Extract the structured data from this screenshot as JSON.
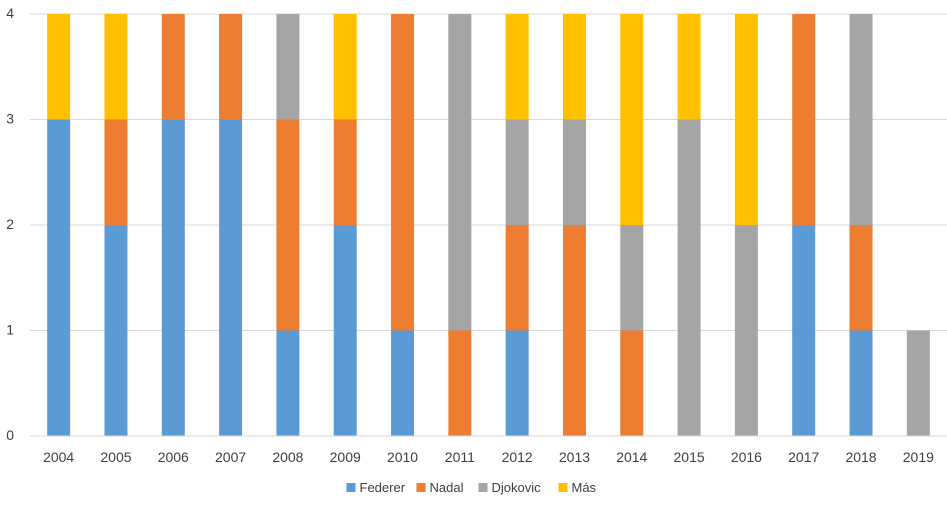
{
  "chart_data": {
    "type": "bar",
    "stacked": true,
    "categories": [
      "2004",
      "2005",
      "2006",
      "2007",
      "2008",
      "2009",
      "2010",
      "2011",
      "2012",
      "2013",
      "2014",
      "2015",
      "2016",
      "2017",
      "2018",
      "2019"
    ],
    "series": [
      {
        "name": "Federer",
        "color": "#5B9BD5",
        "values": [
          3,
          2,
          3,
          3,
          1,
          2,
          1,
          0,
          1,
          0,
          0,
          0,
          0,
          2,
          1,
          0
        ]
      },
      {
        "name": "Nadal",
        "color": "#ED7D31",
        "values": [
          0,
          1,
          1,
          1,
          2,
          1,
          3,
          1,
          1,
          2,
          1,
          0,
          0,
          2,
          1,
          0
        ]
      },
      {
        "name": "Djokovic",
        "color": "#A5A5A5",
        "values": [
          0,
          0,
          0,
          0,
          1,
          0,
          0,
          3,
          1,
          1,
          1,
          3,
          2,
          0,
          2,
          1
        ]
      },
      {
        "name": "Más",
        "color": "#FFC000",
        "values": [
          1,
          1,
          0,
          0,
          0,
          1,
          0,
          0,
          1,
          1,
          2,
          1,
          2,
          0,
          0,
          0
        ]
      }
    ],
    "ylim": [
      0,
      4
    ],
    "yticks": [
      "0",
      "1",
      "2",
      "3",
      "4"
    ],
    "grid": true,
    "legend": "bottom",
    "title": "",
    "xlabel": "",
    "ylabel": ""
  }
}
